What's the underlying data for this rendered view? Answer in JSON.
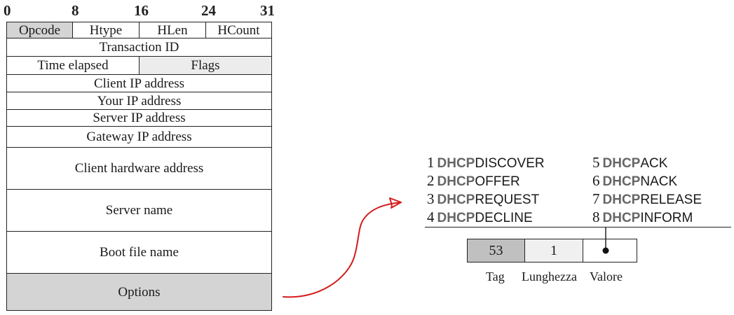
{
  "bit_positions": [
    "0",
    "8",
    "16",
    "24",
    "31"
  ],
  "header_fields": {
    "opcode": "Opcode",
    "htype": "Htype",
    "hlen": "HLen",
    "hcount": "HCount",
    "transaction_id": "Transaction ID",
    "time_elapsed": "Time elapsed",
    "flags": "Flags",
    "client_ip": "Client IP address",
    "your_ip": "Your IP address",
    "server_ip": "Server IP address",
    "gateway_ip": "Gateway IP address",
    "client_hw": "Client hardware address",
    "server_name": "Server name",
    "boot_file": "Boot file name",
    "options": "Options"
  },
  "message_types": [
    {
      "num": "1",
      "prefix": "DHCP",
      "suffix": "DISCOVER"
    },
    {
      "num": "2",
      "prefix": "DHCP",
      "suffix": "OFFER"
    },
    {
      "num": "3",
      "prefix": "DHCP",
      "suffix": "REQUEST"
    },
    {
      "num": "4",
      "prefix": "DHCP",
      "suffix": "DECLINE"
    },
    {
      "num": "5",
      "prefix": "DHCP",
      "suffix": "ACK"
    },
    {
      "num": "6",
      "prefix": "DHCP",
      "suffix": "NACK"
    },
    {
      "num": "7",
      "prefix": "DHCP",
      "suffix": "RELEASE"
    },
    {
      "num": "8",
      "prefix": "DHCP",
      "suffix": "INFORM"
    }
  ],
  "option": {
    "tag_value": "53",
    "length_value": "1",
    "tag_label": "Tag",
    "length_label": "Lunghezza",
    "value_label": "Valore"
  },
  "colors": {
    "arrow": "#d41c1c",
    "gray_fill": "#d4d4d4",
    "light_fill": "#ececec",
    "dhcp_prefix": "#666666"
  }
}
